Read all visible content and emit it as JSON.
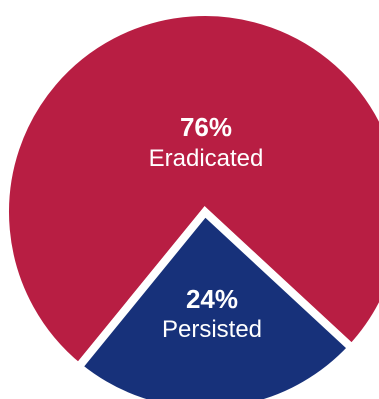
{
  "chart_data": {
    "type": "pie",
    "slices": [
      {
        "label": "Eradicated",
        "value": 76,
        "value_label": "76%",
        "color": "#B81E43"
      },
      {
        "label": "Persisted",
        "value": 24,
        "value_label": "24%",
        "color": "#17317A"
      }
    ],
    "separator_color": "#FFFFFF",
    "legend": "none",
    "labels_inside": true
  }
}
